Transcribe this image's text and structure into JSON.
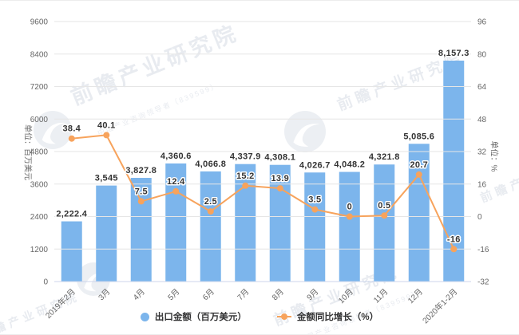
{
  "chart_data": {
    "type": "bar",
    "title": "",
    "categories": [
      "2019年2月",
      "3月",
      "4月",
      "5月",
      "6月",
      "7月",
      "8月",
      "9月",
      "10月",
      "11月",
      "12月",
      "2020年1-2月"
    ],
    "series": [
      {
        "name": "出口金额（百万美元）",
        "type": "bar",
        "axis": "left",
        "color": "#7cb5ec",
        "values": [
          2222.4,
          3545,
          3827.8,
          4360.6,
          4066.8,
          4337.9,
          4308.1,
          4026.7,
          4048.2,
          4321.8,
          5085.6,
          8157.3
        ],
        "labels": [
          "2,222.4",
          "3,545",
          "3,827.8",
          "4,360.6",
          "4,066.8",
          "4,337.9",
          "4,308.1",
          "4,026.7",
          "4,048.2",
          "4,321.8",
          "5,085.6",
          "8,157.3"
        ]
      },
      {
        "name": "金额同比增长（%）",
        "type": "line",
        "axis": "right",
        "color": "#f7a35c",
        "values": [
          38.4,
          40.1,
          7.5,
          12.4,
          2.5,
          15.2,
          13.9,
          3.5,
          0,
          0.5,
          20.7,
          -16
        ],
        "labels": [
          "38.4",
          "40.1",
          "7.5",
          "12.4",
          "2.5",
          "15.2",
          "13.9",
          "3.5",
          "0",
          "0.5",
          "20.7",
          "-16"
        ]
      }
    ],
    "left_axis": {
      "title": "单位：百万美元",
      "min": 0,
      "max": 9600,
      "tick_interval": 1200,
      "ticks": [
        0,
        1200,
        2400,
        3600,
        4800,
        6000,
        7200,
        8400,
        9600
      ]
    },
    "right_axis": {
      "title": "单位：%",
      "min": -32,
      "max": 96,
      "tick_interval": 16,
      "ticks": [
        -32,
        -16,
        0,
        16,
        32,
        48,
        64,
        80,
        96
      ]
    },
    "legend": {
      "position": "bottom",
      "items": [
        "出口金额（百万美元）",
        "金额同比增长（%）"
      ]
    },
    "grid": true
  },
  "watermark": {
    "brand": "前瞻产业研究院",
    "tagline": "中国产业咨询领导者（839599）"
  },
  "colors": {
    "bar": "#7cb5ec",
    "line": "#f7a35c",
    "grid": "#e6e6e6",
    "axis_line": "#ccd6eb",
    "tick_text": "#666666",
    "data_label": "#333333"
  }
}
